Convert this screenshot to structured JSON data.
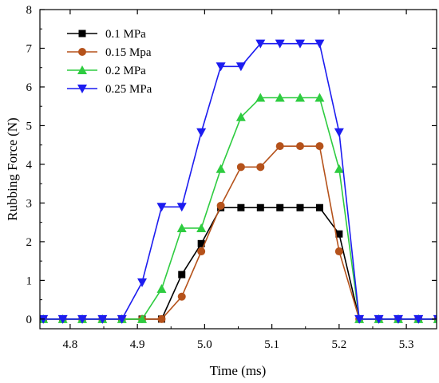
{
  "chart_data": {
    "type": "line",
    "title": "",
    "xlabel": "Time (ms)",
    "ylabel": "Rubbing Force (N)",
    "xlim": [
      4.755,
      5.345
    ],
    "ylim": [
      -0.25,
      8
    ],
    "xticks": [
      4.8,
      4.9,
      5.0,
      5.1,
      5.2,
      5.3
    ],
    "yticks": [
      0,
      1,
      2,
      3,
      4,
      5,
      6,
      7,
      8
    ],
    "xtick_labels": [
      "4.8",
      "4.9",
      "5.0",
      "5.1",
      "5.2",
      "5.3"
    ],
    "ytick_labels": [
      "0",
      "1",
      "2",
      "3",
      "4",
      "5",
      "6",
      "7",
      "8"
    ],
    "legend_position": "top-left",
    "grid": false,
    "x": [
      4.76,
      4.789,
      4.818,
      4.848,
      4.877,
      4.907,
      4.936,
      4.966,
      4.995,
      5.024,
      5.054,
      5.083,
      5.112,
      5.142,
      5.171,
      5.2,
      5.23,
      5.259,
      5.288,
      5.318,
      5.347
    ],
    "series": [
      {
        "name": "0.1 MPa",
        "color": "#000000",
        "marker": "square",
        "values": [
          0,
          0,
          0,
          0,
          0,
          0,
          0,
          1.15,
          1.95,
          2.88,
          2.88,
          2.88,
          2.88,
          2.88,
          2.88,
          2.2,
          0,
          0,
          0,
          0,
          0
        ]
      },
      {
        "name": "0.15 Mpa",
        "color": "#b5521b",
        "marker": "circle",
        "values": [
          0,
          0,
          0,
          0,
          0,
          0,
          0,
          0.58,
          1.75,
          2.93,
          3.93,
          3.93,
          4.47,
          4.47,
          4.47,
          1.75,
          0,
          0,
          0,
          0,
          0
        ]
      },
      {
        "name": "0.2 MPa",
        "color": "#2ecc40",
        "marker": "triangle-up",
        "values": [
          0,
          0,
          0,
          0,
          0,
          0,
          0.78,
          2.35,
          2.35,
          3.88,
          5.22,
          5.72,
          5.72,
          5.72,
          5.72,
          3.88,
          0,
          0,
          0,
          0,
          0
        ]
      },
      {
        "name": "0.25 MPa",
        "color": "#1c1cf0",
        "marker": "triangle-down",
        "values": [
          0,
          0,
          0,
          0,
          0,
          0.95,
          2.9,
          2.9,
          4.83,
          6.53,
          6.53,
          7.12,
          7.12,
          7.12,
          7.12,
          4.83,
          0,
          0,
          0,
          0,
          0
        ]
      }
    ]
  }
}
